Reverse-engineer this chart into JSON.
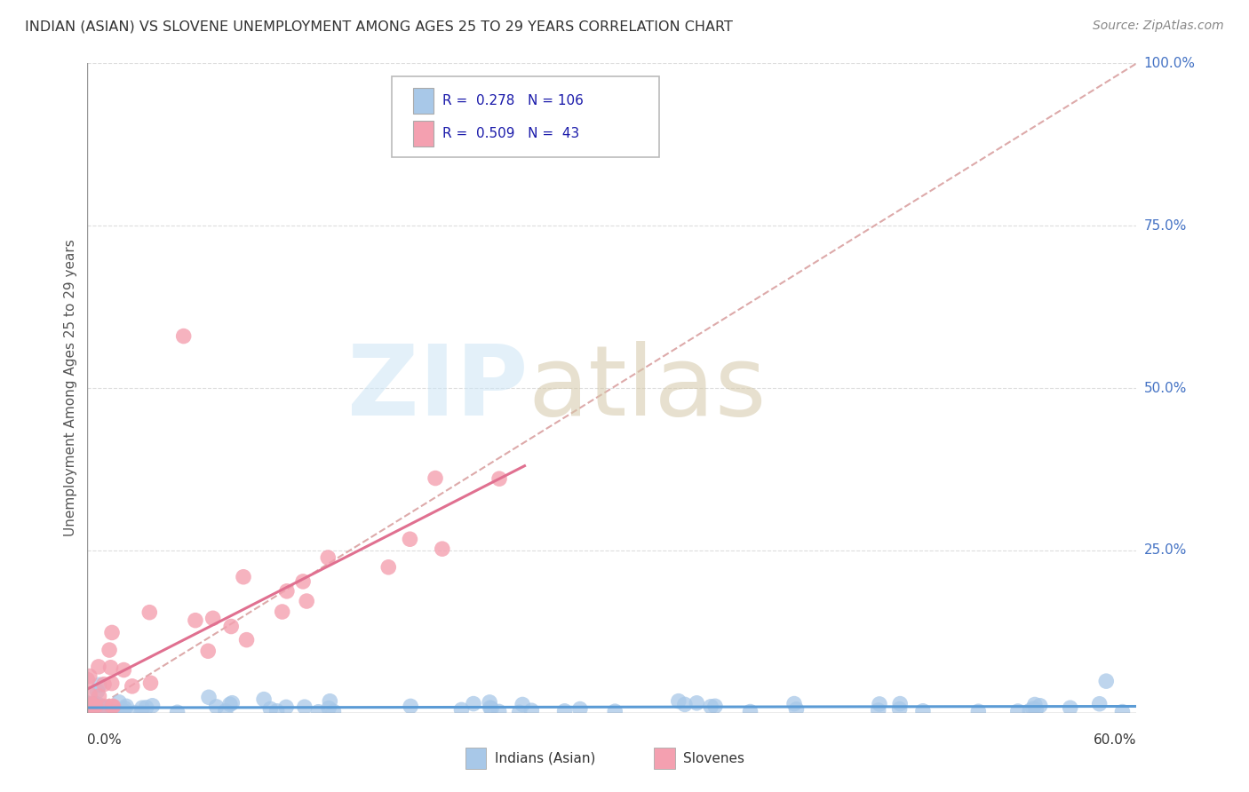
{
  "title": "INDIAN (ASIAN) VS SLOVENE UNEMPLOYMENT AMONG AGES 25 TO 29 YEARS CORRELATION CHART",
  "source": "Source: ZipAtlas.com",
  "ylabel": "Unemployment Among Ages 25 to 29 years",
  "legend_labels": [
    "Indians (Asian)",
    "Slovenes"
  ],
  "legend_R": [
    0.278,
    0.509
  ],
  "legend_N": [
    106,
    43
  ],
  "color_indian": "#a8c8e8",
  "color_slovene": "#f4a0b0",
  "line_color_indian": "#5b9bd5",
  "line_color_slovene": "#e07090",
  "ref_line_color": "#ddaaaa",
  "grid_color": "#dddddd",
  "ytick_color": "#4472c4",
  "xlim": [
    0.0,
    0.6
  ],
  "ylim": [
    0.0,
    1.0
  ],
  "xtick_labels": [
    "0.0%",
    "60.0%"
  ],
  "ytick_labels": [
    "25.0%",
    "50.0%",
    "75.0%",
    "100.0%"
  ],
  "ytick_vals": [
    0.25,
    0.5,
    0.75,
    1.0
  ]
}
